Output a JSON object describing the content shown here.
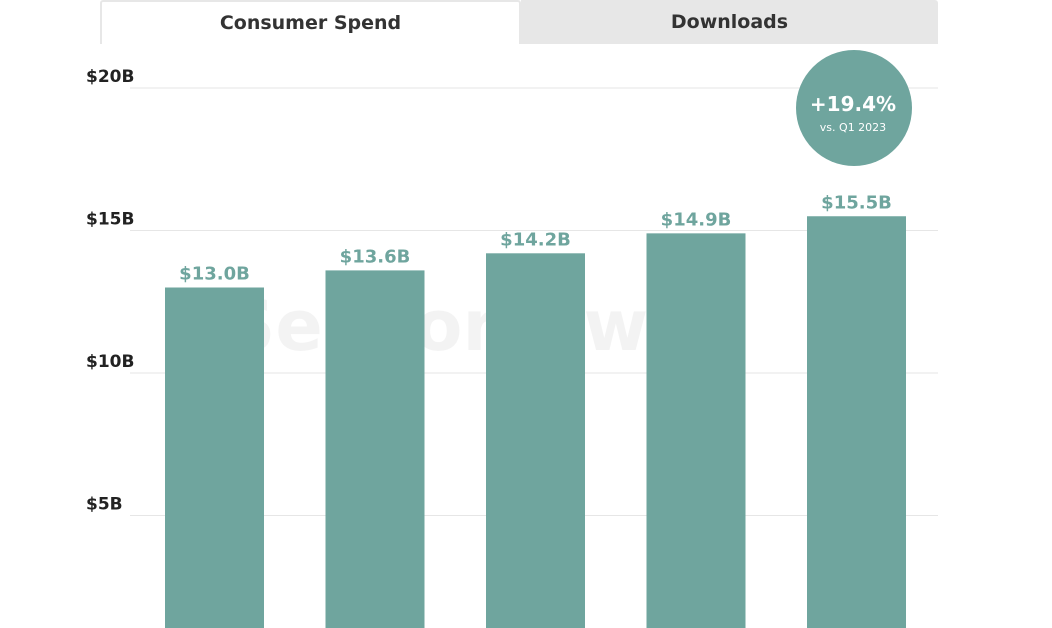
{
  "tabs": [
    {
      "label": "Consumer Spend",
      "active": true
    },
    {
      "label": "Downloads",
      "active": false
    }
  ],
  "watermark": "SensorTower",
  "badge": {
    "value": "+19.4%",
    "caption": "vs. Q1 2023"
  },
  "colors": {
    "bar": "#6fa59e",
    "badge": "#6fa59e",
    "grid": "#e6e6e6",
    "tab_inactive": "#e7e7e7"
  },
  "chart_data": {
    "type": "bar",
    "values": [
      13.0,
      13.6,
      14.2,
      14.9,
      15.5
    ],
    "data_labels": [
      "$13.0B",
      "$13.6B",
      "$14.2B",
      "$14.9B",
      "$15.5B"
    ],
    "y_ticks": [
      5,
      10,
      15,
      20
    ],
    "y_tick_labels": [
      "$5B",
      "$10B",
      "$15B",
      "$20B"
    ],
    "ylim": [
      0,
      20
    ],
    "grid": true
  }
}
